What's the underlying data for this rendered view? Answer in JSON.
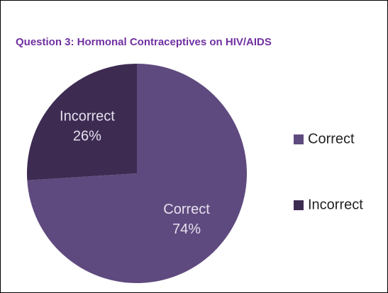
{
  "chart_data": {
    "type": "pie",
    "title": "Question 3: Hormonal Contraceptives on HIV/AIDS",
    "categories": [
      "Correct",
      "Incorrect"
    ],
    "values": [
      74,
      26
    ],
    "value_labels": [
      "74%",
      "26%"
    ],
    "colors": [
      "#5f4a7f",
      "#3d2b52"
    ],
    "legend": "right"
  }
}
